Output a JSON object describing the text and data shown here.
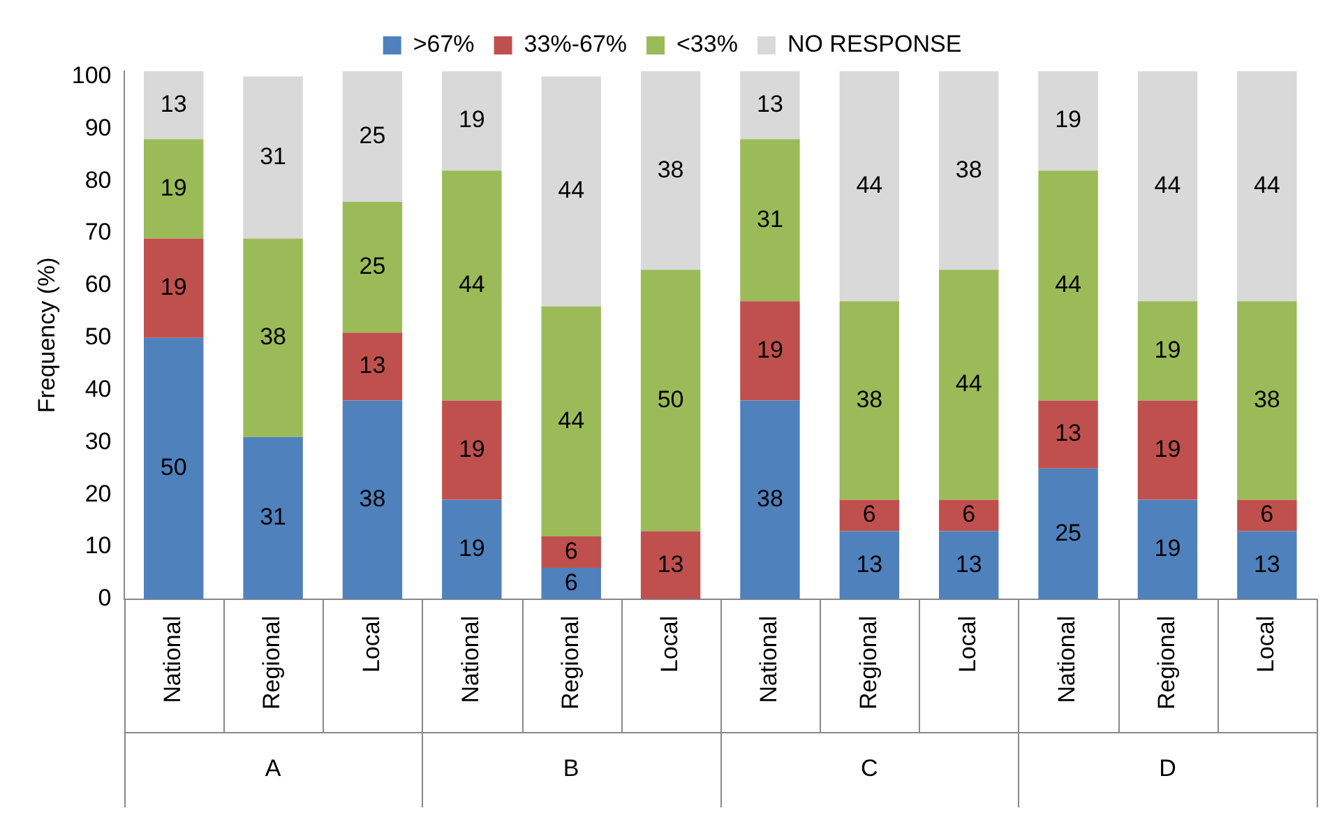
{
  "chart_data": {
    "type": "bar",
    "stacked": true,
    "ylabel": "Frequency (%)",
    "categories": [
      "National",
      "Regional",
      "Local",
      "National",
      "Regional",
      "Local",
      "National",
      "Regional",
      "Local",
      "National",
      "Regional",
      "Local"
    ],
    "annotations": [
      "A",
      "B",
      "C",
      "D"
    ],
    "series": [
      {
        "name": ">67%",
        "color": "#4f81bd",
        "values": [
          50,
          31,
          38,
          19,
          6,
          null,
          38,
          13,
          13,
          25,
          19,
          13
        ]
      },
      {
        "name": "33%-67%",
        "color": "#c0504d",
        "values": [
          19,
          null,
          13,
          19,
          6,
          13,
          19,
          6,
          6,
          13,
          19,
          6
        ]
      },
      {
        "name": "<33%",
        "color": "#9bbb59",
        "values": [
          19,
          38,
          25,
          44,
          44,
          50,
          31,
          38,
          44,
          44,
          19,
          38
        ]
      },
      {
        "name": "NO RESPONSE",
        "color": "#d9d9d9",
        "values": [
          13,
          31,
          25,
          19,
          44,
          38,
          13,
          44,
          38,
          19,
          44,
          44
        ]
      }
    ],
    "ylim": [
      0,
      101
    ],
    "yticks": [
      0,
      10,
      20,
      30,
      40,
      50,
      60,
      70,
      80,
      90,
      100
    ],
    "grid": false,
    "legend": "top",
    "data_labels": true
  }
}
